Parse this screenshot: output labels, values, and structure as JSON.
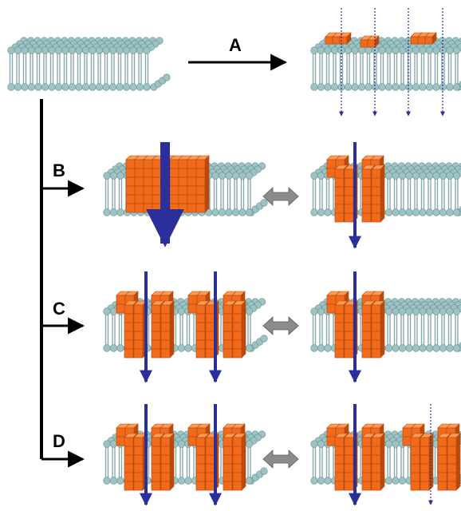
{
  "labels": {
    "a": "A",
    "b": "B",
    "c": "C",
    "d": "D"
  },
  "colors": {
    "lipid_head": "#9ec3c4",
    "lipid_head_dark": "#5f8c8e",
    "lipid_tail": "#8aa9ab",
    "peptide": "#f26b1d",
    "peptide_dark": "#b94a0c",
    "peptide_light": "#ff9a55",
    "ion_arrow": "#2b2f9c",
    "exchange_arrow": "#8c8c8c",
    "line": "#000000"
  },
  "icons": [
    "lipid-bilayer-icon",
    "peptide-pore-icon",
    "ion-flow-arrow-icon",
    "equilibrium-arrow-icon"
  ]
}
